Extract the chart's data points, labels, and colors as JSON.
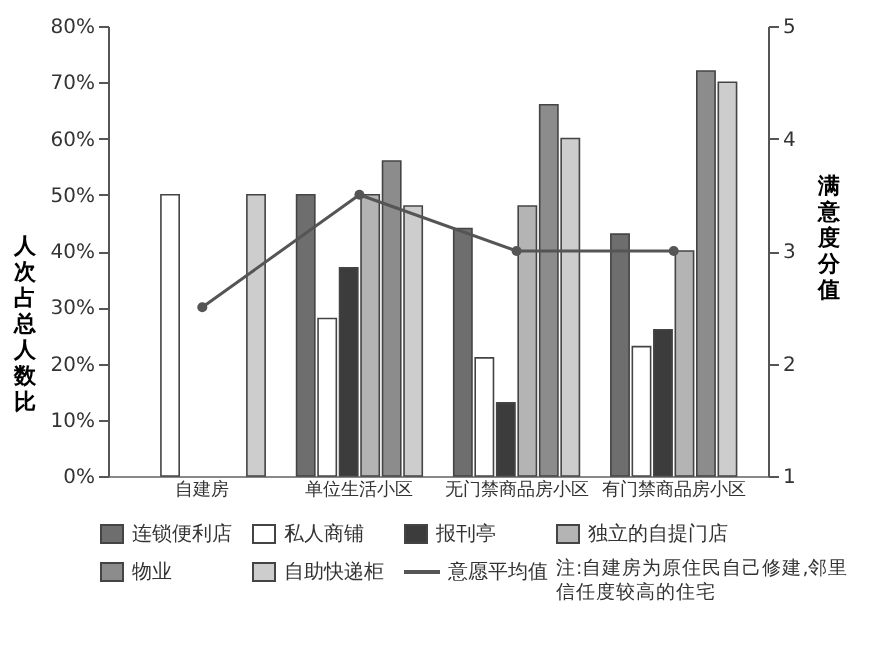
{
  "chart_data": {
    "type": "bar",
    "categories": [
      "自建房",
      "单位生活小区",
      "无门禁商品房小区",
      "有门禁商品房小区"
    ],
    "ylabel": "人次占总人数比",
    "y2label": "满意度分值",
    "ylim": [
      0,
      80
    ],
    "yticks": [
      {
        "value": 0,
        "label": "0%"
      },
      {
        "value": 10,
        "label": "10%"
      },
      {
        "value": 20,
        "label": "20%"
      },
      {
        "value": 30,
        "label": "30%"
      },
      {
        "value": 40,
        "label": "40%"
      },
      {
        "value": 50,
        "label": "50%"
      },
      {
        "value": 60,
        "label": "60%"
      },
      {
        "value": 70,
        "label": "70%"
      },
      {
        "value": 80,
        "label": "80%"
      }
    ],
    "y2lim": [
      1,
      5
    ],
    "y2ticks": [
      1,
      2,
      3,
      4,
      5
    ],
    "series": [
      {
        "name": "连锁便利店",
        "color": "#6e6e6e",
        "values": [
          null,
          50,
          44,
          43
        ]
      },
      {
        "name": "私人商铺",
        "color": "#ffffff",
        "values": [
          50,
          28,
          21,
          23
        ]
      },
      {
        "name": "报刊亭",
        "color": "#3c3c3c",
        "values": [
          null,
          37,
          13,
          26
        ]
      },
      {
        "name": "独立的自提门店",
        "color": "#b4b4b4",
        "values": [
          null,
          50,
          48,
          40
        ]
      },
      {
        "name": "物业",
        "color": "#8c8c8c",
        "values": [
          null,
          56,
          66,
          72
        ]
      },
      {
        "name": "自助快递柜",
        "color": "#cdcdcd",
        "values": [
          50,
          48,
          60,
          70
        ]
      },
      {
        "name": "意愿平均值",
        "type": "line",
        "axis": "y2",
        "color": "#555555",
        "values": [
          2.5,
          3.5,
          3.0,
          3.0
        ]
      }
    ],
    "marker": "circle",
    "legend": "bottom",
    "grid": false,
    "annotations": [
      "注:自建房为原住民自己修建,邻里信任度较高的住宅"
    ]
  }
}
